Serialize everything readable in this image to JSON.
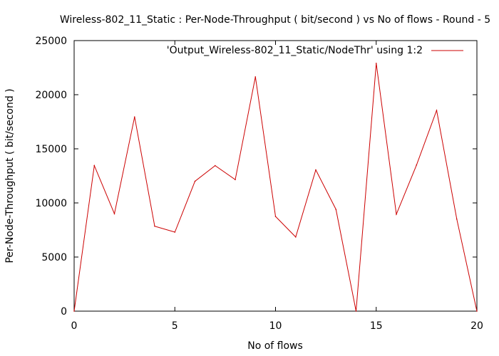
{
  "chart_data": {
    "type": "line",
    "title": "Wireless-802_11_Static : Per-Node-Throughput ( bit/second ) vs No of flows - Round - 5",
    "xlabel": "No of flows",
    "ylabel": "Per-Node-Throughput ( bit/second )",
    "xlim": [
      0,
      20
    ],
    "ylim": [
      0,
      25000
    ],
    "xticks": [
      "0",
      "5",
      "10",
      "15",
      "20"
    ],
    "yticks": [
      "0",
      "5000",
      "10000",
      "15000",
      "20000",
      "25000"
    ],
    "grid": false,
    "legend_position": "top-right",
    "series": [
      {
        "name": "'Output_Wireless-802_11_Static/NodeThr' using 1:2",
        "color": "#cc0000",
        "x": [
          0,
          1,
          2,
          3,
          4,
          5,
          6,
          7,
          8,
          9,
          10,
          11,
          12,
          13,
          14,
          15,
          16,
          17,
          18,
          19,
          20
        ],
        "y": [
          0,
          13450,
          9000,
          17950,
          7850,
          7300,
          12000,
          13450,
          12150,
          21650,
          8750,
          6850,
          13050,
          9400,
          0,
          22900,
          8950,
          13500,
          18550,
          8500,
          0
        ]
      }
    ]
  }
}
